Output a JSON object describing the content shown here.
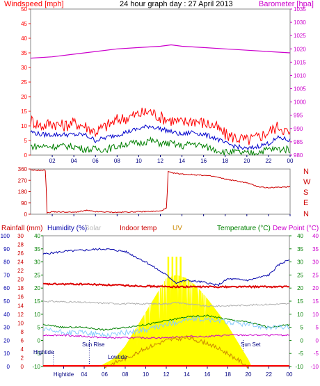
{
  "chart_data": [
    {
      "type": "line",
      "title": "24 hour graph day : 27 April 2013",
      "left_axis_label": "Windspeed [mph]",
      "right_axis_label": "Barometer [hpa]",
      "colors": {
        "left_axis": "#ff0000",
        "right_axis": "#cc00cc",
        "gust": "#ff0000",
        "average": "#0000cc",
        "lull": "#008000",
        "barometer": "#cc00cc"
      },
      "ylim_left": [
        0,
        50
      ],
      "ylim_right": [
        980,
        1035
      ],
      "yticks_left": [
        "0",
        "5",
        "10",
        "15",
        "20",
        "25",
        "30",
        "35",
        "40",
        "45",
        "50"
      ],
      "yticks_right": [
        "980",
        "985",
        "990",
        "995",
        "1000",
        "1005",
        "1010",
        "1015",
        "1020",
        "1025",
        "1030",
        "1035"
      ],
      "x_hours": [
        "02",
        "04",
        "06",
        "08",
        "10",
        "12",
        "14",
        "16",
        "18",
        "20",
        "22",
        "00"
      ],
      "series": [
        {
          "name": "",
          "color_key": "barometer",
          "axis": "right",
          "x": [
            0,
            2,
            4,
            6,
            8,
            10,
            12,
            13,
            14,
            16,
            18,
            20,
            22,
            24
          ],
          "values": [
            1016.5,
            1017,
            1018,
            1019,
            1020,
            1020.5,
            1021,
            1021.5,
            1021,
            1020.5,
            1020,
            1019.5,
            1019,
            1018.5
          ]
        },
        {
          "name": "",
          "color_key": "gust",
          "axis": "left",
          "x": [
            0,
            1,
            2,
            3,
            4,
            5,
            6,
            7,
            8,
            9,
            10,
            11,
            12,
            13,
            14,
            15,
            16,
            17,
            18,
            19,
            20,
            21,
            22,
            23,
            24
          ],
          "values": [
            12,
            10,
            11,
            10,
            11,
            10,
            8,
            10,
            12,
            13,
            14,
            15,
            13,
            12,
            11,
            12,
            11,
            10,
            7,
            6,
            5,
            6,
            8,
            10,
            7
          ]
        },
        {
          "name": "",
          "color_key": "average",
          "axis": "left",
          "x": [
            0,
            1,
            2,
            3,
            4,
            5,
            6,
            7,
            8,
            9,
            10,
            11,
            12,
            13,
            14,
            15,
            16,
            17,
            18,
            19,
            20,
            21,
            22,
            23,
            24
          ],
          "values": [
            8,
            7,
            7,
            7,
            7,
            7,
            5,
            6,
            7,
            8,
            9,
            10,
            9,
            8,
            7,
            8,
            7,
            6,
            4,
            3,
            2,
            3,
            4,
            6,
            5
          ]
        },
        {
          "name": "",
          "color_key": "lull",
          "axis": "left",
          "x": [
            0,
            1,
            2,
            3,
            4,
            5,
            6,
            7,
            8,
            9,
            10,
            11,
            12,
            13,
            14,
            15,
            16,
            17,
            18,
            19,
            20,
            21,
            22,
            23,
            24
          ],
          "values": [
            3,
            3,
            3,
            3,
            3,
            2,
            2,
            2,
            3,
            4,
            4,
            5,
            4,
            4,
            3,
            4,
            3,
            2,
            1,
            1,
            0.5,
            1,
            2,
            2,
            2
          ]
        }
      ]
    },
    {
      "type": "line",
      "ylim": [
        0,
        360
      ],
      "yticks": [
        "0",
        "90",
        "180",
        "270",
        "360"
      ],
      "compass_labels": [
        "N",
        "W",
        "S",
        "E",
        "N"
      ],
      "compass_color": "#cc0000",
      "x_hours": [
        "02",
        "04",
        "06",
        "08",
        "10",
        "12",
        "14",
        "16",
        "18",
        "20",
        "22",
        "00"
      ],
      "series": [
        {
          "name": "",
          "color": "#cc0000",
          "x": [
            0,
            1.4,
            1.5,
            2,
            4,
            5.2,
            6,
            8,
            10,
            12,
            12.6,
            12.7,
            13,
            14,
            16,
            17,
            18,
            20,
            21,
            22,
            24
          ],
          "values": [
            350,
            350,
            10,
            20,
            15,
            30,
            20,
            15,
            20,
            25,
            50,
            340,
            330,
            320,
            310,
            300,
            280,
            250,
            220,
            210,
            220
          ]
        }
      ]
    },
    {
      "type": "line",
      "labels": {
        "rainfall": "Rainfall (mm)",
        "humidity": "Humidity (%)",
        "solar": "Solar",
        "indoor": "Indoor temp",
        "uv": "UV",
        "temperature": "Temperature (°C)",
        "dewpoint": "Dew Point (°C)"
      },
      "label_colors": {
        "rainfall": "#cc0000",
        "humidity": "#0000aa",
        "solar": "#bbbbbb",
        "indoor": "#cc0000",
        "uv": "#cc8800",
        "temperature": "#008000",
        "dewpoint": "#cc00cc"
      },
      "yticks_humidity": [
        "0",
        "10",
        "20",
        "30",
        "40",
        "50",
        "60",
        "70",
        "80",
        "90",
        "100"
      ],
      "yticks_rain": [
        "0",
        "2",
        "4",
        "6",
        "8",
        "10",
        "12",
        "14",
        "16",
        "18",
        "20",
        "22",
        "24",
        "26",
        "28",
        "30"
      ],
      "yticks_temp_left": [
        "-10",
        "-5",
        "0",
        "5",
        "10",
        "15",
        "20",
        "25",
        "30",
        "35",
        "40"
      ],
      "yticks_temp_right": [
        "-10",
        "-5",
        "0",
        "5",
        "10",
        "15",
        "20",
        "25",
        "30",
        "35",
        "40"
      ],
      "ylim_humidity": [
        0,
        100
      ],
      "ylim_temp": [
        -10,
        40
      ],
      "x_hours": [
        "Hightide",
        "04",
        "06",
        "08",
        "10",
        "12",
        "14",
        "16",
        "18",
        "20",
        "22",
        "00"
      ],
      "annotations": [
        "Hightide",
        "Sun Rise",
        "Lowtide",
        "Sun Set"
      ],
      "series": [
        {
          "name": "",
          "key": "humidity",
          "color": "#0000aa",
          "axis": "humidity",
          "x": [
            0,
            2,
            4,
            6,
            8,
            10,
            12,
            13,
            14,
            16,
            17,
            18,
            20,
            22,
            23,
            24
          ],
          "values": [
            86,
            88,
            89,
            90,
            88,
            80,
            70,
            64,
            66,
            64,
            62,
            67,
            66,
            70,
            78,
            82
          ]
        },
        {
          "name": "",
          "key": "indoor",
          "color": "#dd0000",
          "axis": "temp",
          "x": [
            0,
            4,
            8,
            12,
            16,
            20,
            24
          ],
          "values": [
            21.5,
            21.5,
            21,
            20.5,
            20.5,
            20.5,
            20.5
          ]
        },
        {
          "name": "",
          "key": "grey",
          "color": "#b0b0b0",
          "axis": "temp",
          "x": [
            0,
            4,
            8,
            12,
            13,
            16,
            20,
            24
          ],
          "values": [
            15,
            14.5,
            14,
            14,
            14.5,
            13,
            13.5,
            14
          ]
        },
        {
          "name": "",
          "key": "temperature",
          "color": "#008000",
          "axis": "temp",
          "x": [
            0,
            2,
            4,
            6,
            8,
            10,
            12,
            14,
            16,
            18,
            20,
            22,
            24
          ],
          "values": [
            6,
            5,
            5,
            4,
            5,
            6,
            7.5,
            9,
            9.5,
            8,
            7,
            5,
            6
          ]
        },
        {
          "name": "",
          "key": "lightblue",
          "color": "#88ccff",
          "axis": "temp",
          "x": [
            0,
            2,
            4,
            6,
            8,
            10,
            12,
            14,
            16,
            18,
            20,
            22,
            24
          ],
          "values": [
            4,
            3,
            3,
            2,
            3,
            4,
            6,
            8,
            8,
            7,
            6,
            5,
            5
          ]
        },
        {
          "name": "",
          "key": "dewpoint",
          "color": "#cc00cc",
          "axis": "temp",
          "x": [
            0,
            2,
            4,
            6,
            8,
            10,
            12,
            14,
            16,
            18,
            20,
            22,
            24
          ],
          "values": [
            2,
            2,
            1.5,
            1,
            1,
            1,
            1,
            1.5,
            1.5,
            2,
            2,
            2,
            2
          ]
        },
        {
          "name": "",
          "key": "uv",
          "color": "#cc8800",
          "axis": "temp",
          "x": [
            6,
            8,
            10,
            12,
            14,
            16,
            18,
            20
          ],
          "values": [
            -10,
            -7,
            -3,
            0,
            1,
            -1,
            -5,
            -10
          ]
        }
      ],
      "solar": {
        "color": "#ffff00",
        "x": [
          5.5,
          7,
          8,
          9,
          10,
          11,
          12,
          13,
          14,
          15,
          16,
          17,
          18,
          19,
          20,
          20.3
        ],
        "values": [
          0,
          5,
          12,
          22,
          32,
          42,
          52,
          54,
          52,
          47,
          40,
          32,
          24,
          14,
          4,
          0
        ]
      },
      "rain_line": {
        "color": "#ff0000",
        "values": [
          0
        ]
      }
    }
  ]
}
